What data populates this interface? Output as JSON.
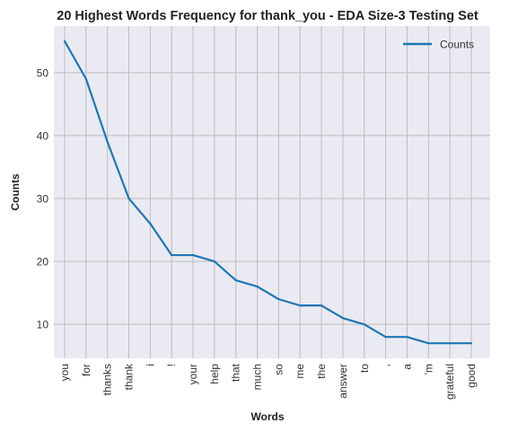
{
  "chart_data": {
    "type": "line",
    "title": "20 Highest Words Frequency for thank_you - EDA Size-3 Testing Set",
    "xlabel": "Words",
    "ylabel": "Counts",
    "categories": [
      "you",
      "for",
      "thanks",
      "thank",
      "i",
      "!",
      "your",
      "help",
      "that",
      "much",
      "so",
      "me",
      "the",
      "answer",
      "to",
      ",",
      "a",
      "'m",
      "grateful",
      "good"
    ],
    "series": [
      {
        "name": "Counts",
        "color": "#1f77b4",
        "values": [
          55,
          49,
          39,
          30,
          26,
          21,
          21,
          20,
          17,
          16,
          14,
          13,
          13,
          11,
          10,
          8,
          8,
          7,
          7,
          7
        ]
      }
    ],
    "ylim": [
      4.6,
      57.4
    ],
    "yticks": [
      10,
      20,
      30,
      40,
      50
    ],
    "grid": true,
    "legend": "top-right",
    "colors": {
      "background": "#eaeaf2",
      "grid": "#bdbdbd"
    }
  }
}
